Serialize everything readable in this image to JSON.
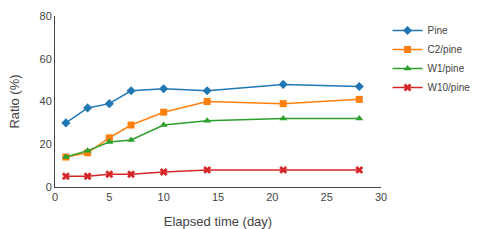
{
  "chart_data": {
    "type": "line",
    "x": [
      1,
      3,
      5,
      7,
      10,
      14,
      21,
      28
    ],
    "series": [
      {
        "name": "Pine",
        "values": [
          30,
          37,
          39,
          45,
          46,
          45,
          48,
          47
        ],
        "marker": "diamond"
      },
      {
        "name": "C2/pine",
        "values": [
          14,
          16,
          23,
          29,
          35,
          40,
          39,
          41
        ],
        "marker": "square"
      },
      {
        "name": "W1/pine",
        "values": [
          14,
          17,
          21,
          22,
          29,
          31,
          32,
          32
        ],
        "marker": "triangle-up"
      },
      {
        "name": "W10/pine",
        "values": [
          5,
          5,
          6,
          6,
          7,
          8,
          8,
          8
        ],
        "marker": "x"
      }
    ],
    "xlabel": "Elapsed time (day)",
    "ylabel": "Ratio (%)",
    "xlim": [
      0,
      30
    ],
    "ylim": [
      0,
      80
    ],
    "xticks": [
      0,
      5,
      10,
      15,
      20,
      25,
      30
    ],
    "yticks": [
      0,
      20,
      40,
      60,
      80
    ],
    "grid": false,
    "legend": "right"
  }
}
